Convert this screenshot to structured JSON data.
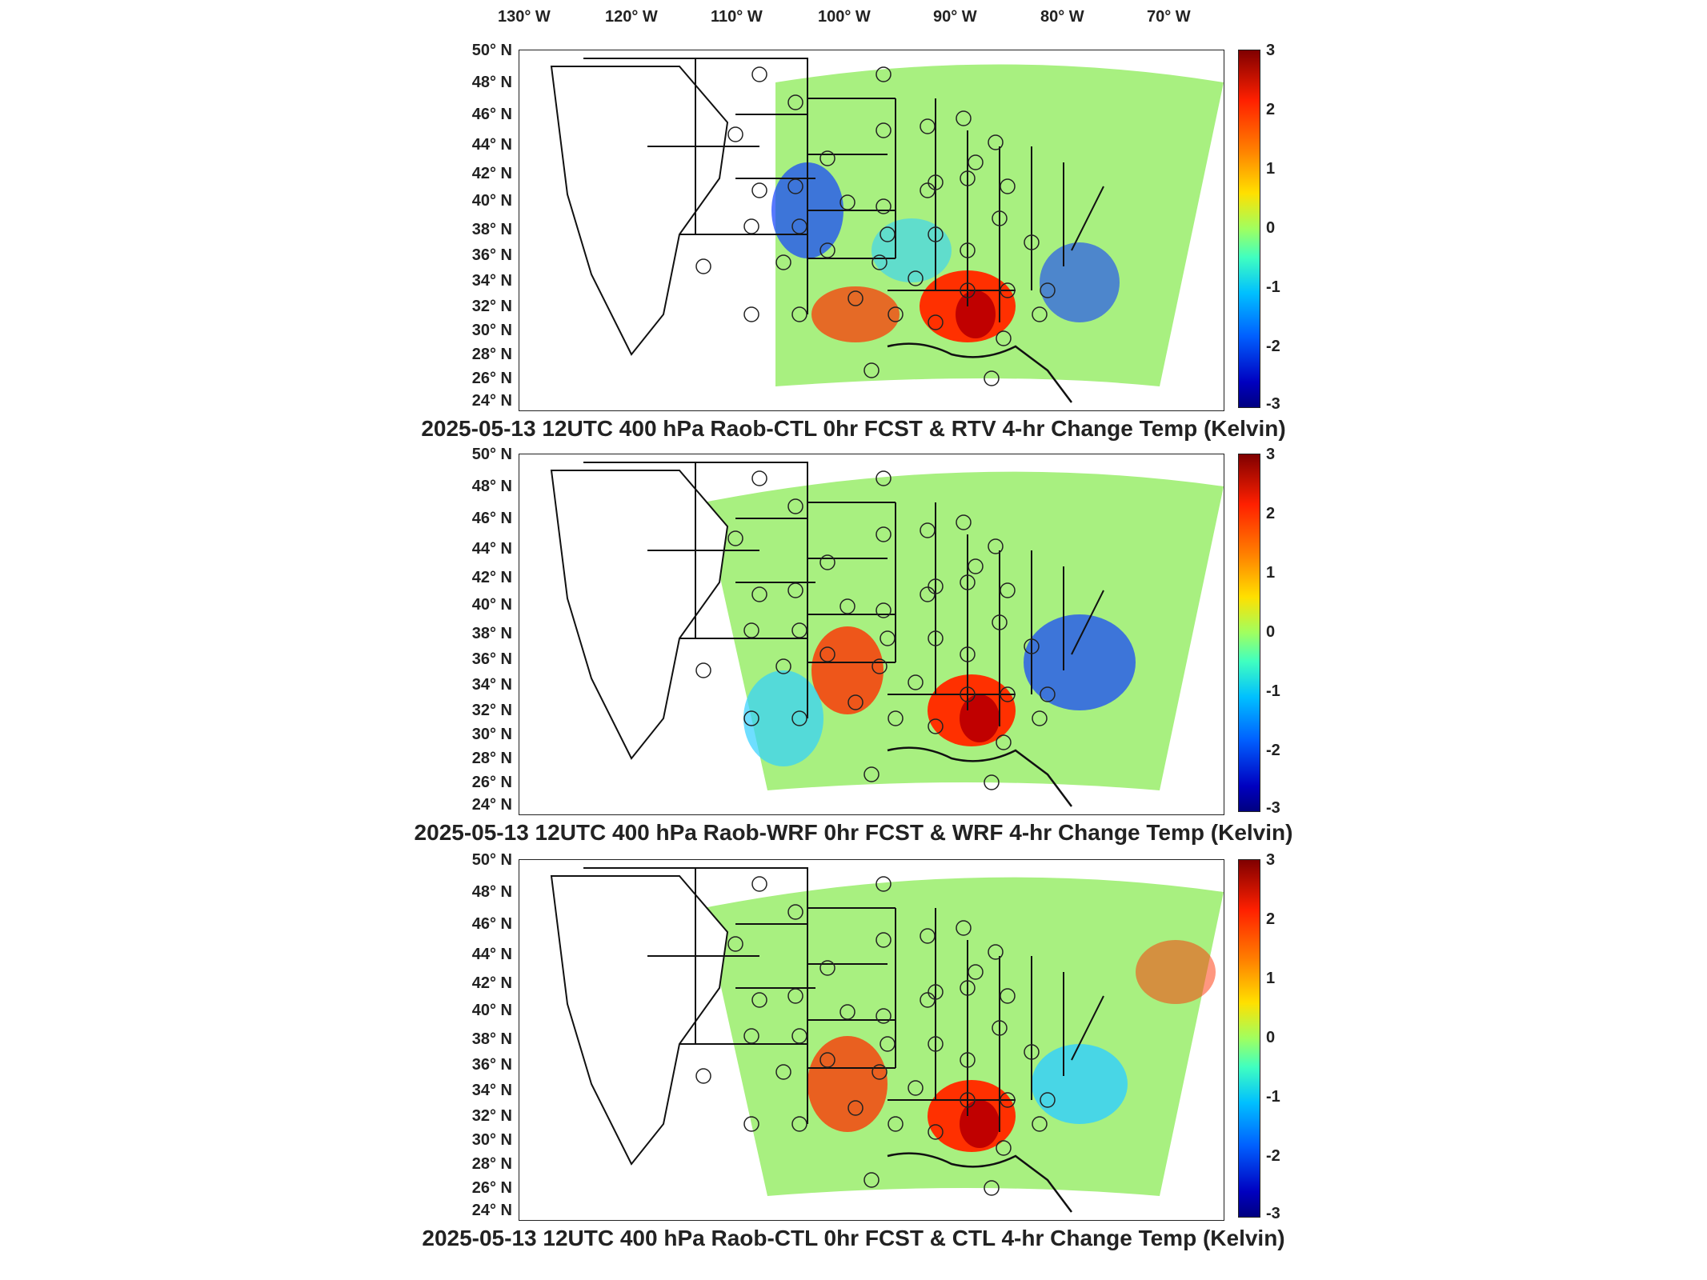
{
  "longitude_labels": [
    "130° W",
    "120° W",
    "110° W",
    "100° W",
    "90° W",
    "80° W",
    "70° W"
  ],
  "latitude_labels": [
    "50° N",
    "48° N",
    "46° N",
    "44° N",
    "42° N",
    "40° N",
    "38° N",
    "36° N",
    "34° N",
    "32° N",
    "30° N",
    "28° N",
    "26° N",
    "24° N"
  ],
  "colorbar_ticks": [
    "3",
    "2",
    "1",
    "0",
    "-1",
    "-2",
    "-3"
  ],
  "colorbar_unit": "Kelvin",
  "panels": [
    {
      "title": "2025-05-13 12UTC 400 hPa Raob-CTL 0hr FCST & RTV 4-hr Change Temp (Kelvin)"
    },
    {
      "title": "2025-05-13 12UTC 400 hPa Raob-WRF 0hr FCST & WRF 4-hr Change Temp (Kelvin)"
    },
    {
      "title": "2025-05-13 12UTC 400 hPa Raob-CTL 0hr FCST & CTL 4-hr Change Temp (Kelvin)"
    }
  ],
  "colors": {
    "warm": "#ff3000",
    "hot": "#c00000",
    "neutral": "#a8f080",
    "cool": "#30d0ff",
    "cold": "#1040ff",
    "raob_ring": "#222222"
  }
}
